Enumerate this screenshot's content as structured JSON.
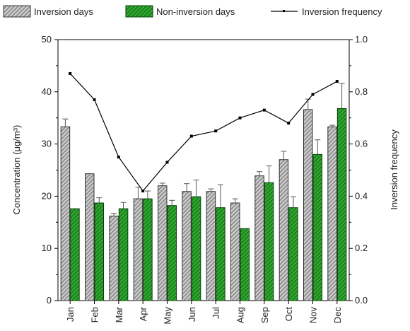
{
  "chart_data": {
    "type": "bar",
    "categories": [
      "Jan",
      "Feb",
      "Mar",
      "Apr",
      "May",
      "Jun",
      "Jul",
      "Aug",
      "Sep",
      "Oct",
      "Nov",
      "Dec"
    ],
    "series": [
      {
        "name": "Inversion days",
        "kind": "bar",
        "axis": "left",
        "color": "#9a9a9a",
        "values": [
          33.3,
          24.3,
          16.2,
          19.5,
          22.0,
          20.9,
          20.9,
          18.7,
          23.9,
          27.0,
          36.6,
          33.3
        ],
        "errors": [
          1.5,
          0.0,
          0.5,
          2.2,
          0.5,
          1.5,
          0.5,
          0.8,
          0.8,
          1.6,
          2.0,
          0.3
        ]
      },
      {
        "name": "Non-inversion days",
        "kind": "bar",
        "axis": "left",
        "color": "#1f8f1f",
        "values": [
          17.6,
          18.7,
          17.6,
          19.5,
          18.2,
          19.9,
          17.8,
          13.8,
          22.6,
          17.8,
          28.0,
          36.8
        ],
        "errors": [
          0.0,
          1.0,
          1.2,
          1.5,
          1.0,
          3.2,
          4.4,
          0.0,
          3.2,
          2.1,
          2.8,
          4.8
        ]
      },
      {
        "name": "Inversion frequency",
        "kind": "line",
        "axis": "right",
        "color": "#000000",
        "values": [
          0.87,
          0.77,
          0.55,
          0.42,
          0.53,
          0.63,
          0.65,
          0.7,
          0.73,
          0.68,
          0.79,
          0.84
        ]
      }
    ],
    "xlabel": "",
    "ylabel": "Concentration (μg/m³)",
    "ylabel_right": "Inversion frequency",
    "ylim": [
      0,
      50
    ],
    "ylim_right": [
      0.0,
      1.0
    ],
    "yticks": [
      "0",
      "10",
      "20",
      "30",
      "40",
      "50"
    ],
    "yticks_right": [
      "0.0",
      "0.2",
      "0.4",
      "0.6",
      "0.8",
      "1.0"
    ],
    "grid": false,
    "legend_placement": "top"
  }
}
